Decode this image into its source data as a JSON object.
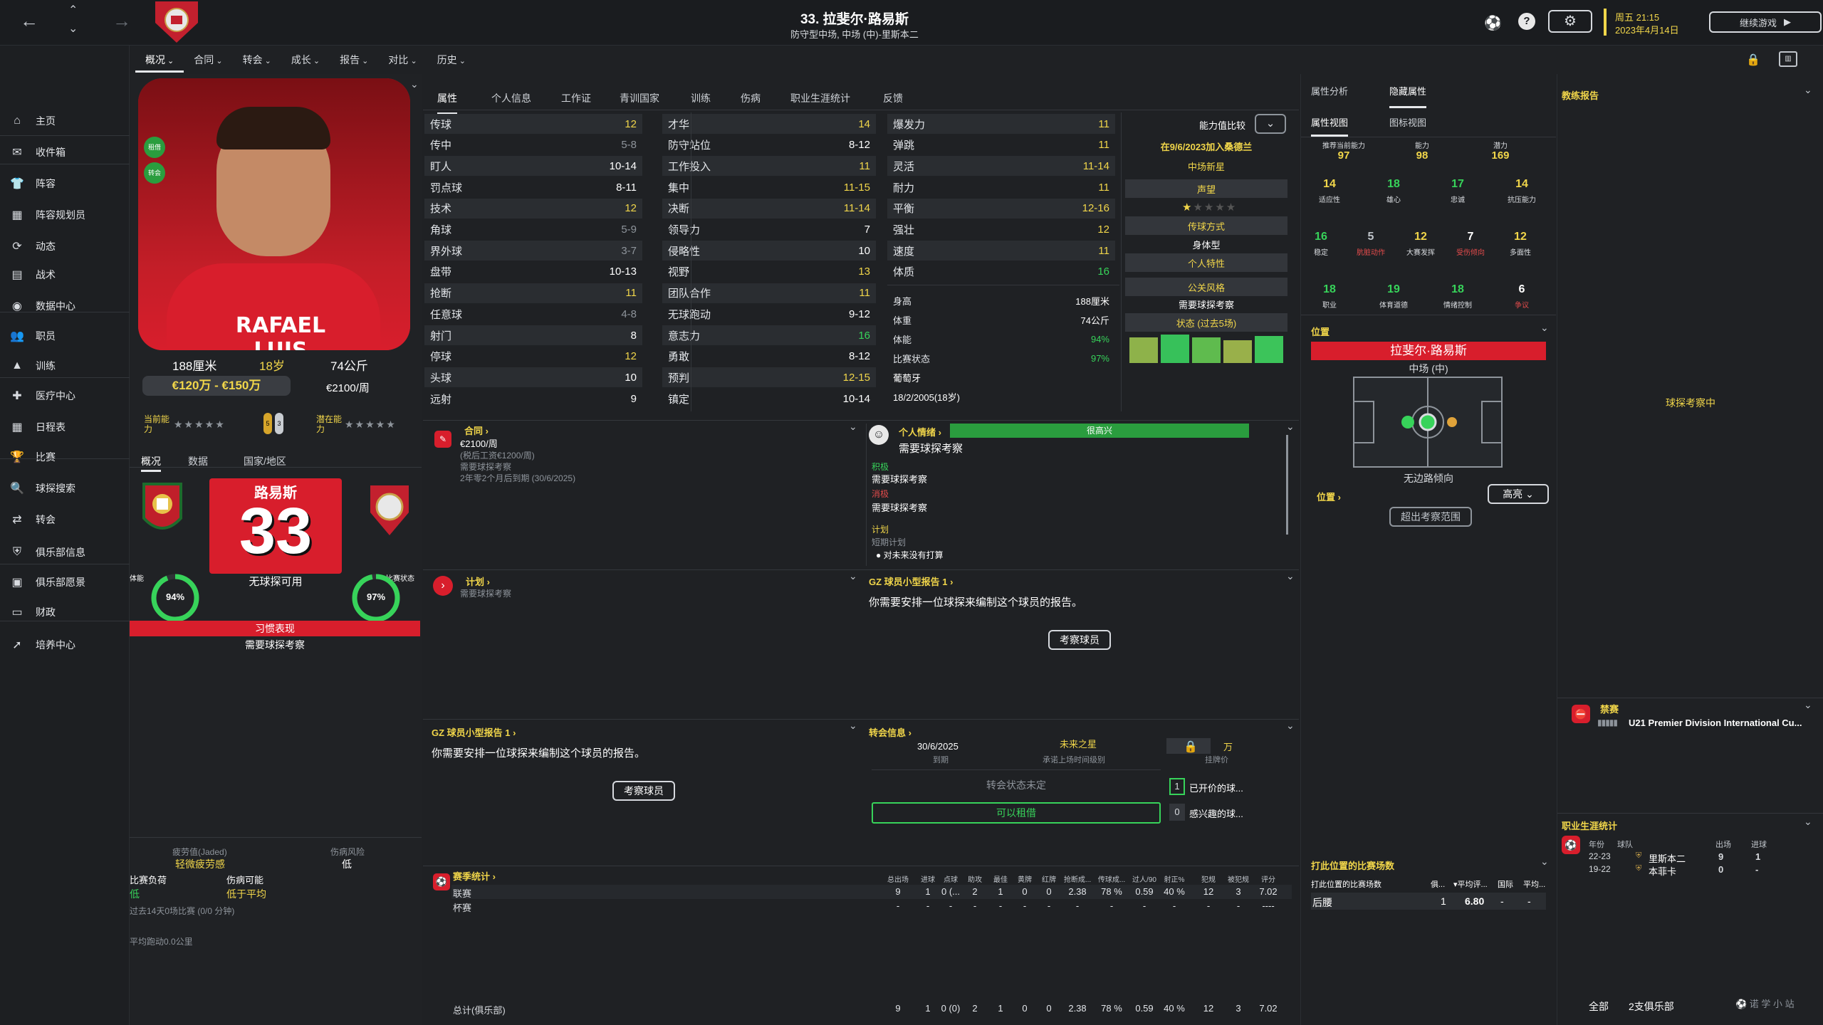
{
  "topbar": {
    "title": "33. 拉斐尔·路易斯",
    "subtitle": "防守型中场, 中场 (中)-里斯本二",
    "day": "周五 21:15",
    "date": "2023年4月14日",
    "continue": "继续游戏"
  },
  "sidebar": {
    "items": [
      {
        "label": "主页",
        "icon": "home-icon"
      },
      {
        "label": "收件箱",
        "icon": "inbox-icon"
      },
      {
        "label": "阵容",
        "icon": "shirt-icon"
      },
      {
        "label": "阵容规划员",
        "icon": "squad-planner-icon"
      },
      {
        "label": "动态",
        "icon": "dynamics-icon"
      },
      {
        "label": "战术",
        "icon": "tactics-icon"
      },
      {
        "label": "数据中心",
        "icon": "data-hub-icon"
      },
      {
        "label": "职员",
        "icon": "staff-icon"
      },
      {
        "label": "训练",
        "icon": "training-icon"
      },
      {
        "label": "医疗中心",
        "icon": "medical-icon"
      },
      {
        "label": "日程表",
        "icon": "calendar-icon"
      },
      {
        "label": "比赛",
        "icon": "trophy-icon"
      },
      {
        "label": "球探搜索",
        "icon": "scouting-icon"
      },
      {
        "label": "转会",
        "icon": "transfers-icon"
      },
      {
        "label": "俱乐部信息",
        "icon": "club-info-icon"
      },
      {
        "label": "俱乐部愿景",
        "icon": "club-vision-icon"
      },
      {
        "label": "财政",
        "icon": "finances-icon"
      },
      {
        "label": "培养中心",
        "icon": "development-icon"
      }
    ]
  },
  "subnav": [
    "概况",
    "合同",
    "转会",
    "成长",
    "报告",
    "对比",
    "历史"
  ],
  "player": {
    "name_on_shirt": "RAFAEL LUIS",
    "height": "188厘米",
    "age": "18岁",
    "weight": "74公斤",
    "value": "€120万 - €150万",
    "wage": "€2100/周",
    "current_ability": "当前能力",
    "potential": "潜在能力",
    "badge1": "租借",
    "badge2": "转会",
    "shirt_name": "路易斯",
    "shirt_number": "33",
    "availability": "无球探可用",
    "condition_label": "体能",
    "condition": "94%",
    "match_fit_label": "比赛状态",
    "match_fit": "97%",
    "form_label": "习惯表现",
    "form_value": "需要球探考察",
    "left_tabs": [
      "概况",
      "数据",
      "国家/地区"
    ],
    "fatigue_label": "疲劳值(Jaded)",
    "fatigue": "轻微疲劳感",
    "injury_risk_label": "伤病风险",
    "injury_risk": "低",
    "match_load_label": "比赛负荷",
    "match_load": "低",
    "injury_chance_label": "伤病可能",
    "injury_chance": "低于平均",
    "recent": "过去14天0场比赛 (0/0 分钟)",
    "avg_dist": "平均跑动0.0公里"
  },
  "attr_tabs": [
    "属性",
    "个人信息",
    "工作证",
    "青训国家",
    "训练",
    "伤病",
    "职业生涯统计",
    "反馈"
  ],
  "technical": [
    [
      "传球",
      "12",
      "y"
    ],
    [
      "传中",
      "5-8",
      "muted"
    ],
    [
      "盯人",
      "10-14",
      "w"
    ],
    [
      "罚点球",
      "8-11",
      "w"
    ],
    [
      "技术",
      "12",
      "y"
    ],
    [
      "角球",
      "5-9",
      "muted"
    ],
    [
      "界外球",
      "3-7",
      "muted"
    ],
    [
      "盘带",
      "10-13",
      "w"
    ],
    [
      "抢断",
      "11",
      "y"
    ],
    [
      "任意球",
      "4-8",
      "muted"
    ],
    [
      "射门",
      "8",
      "w"
    ],
    [
      "停球",
      "12",
      "y"
    ],
    [
      "头球",
      "10",
      "w"
    ],
    [
      "远射",
      "9",
      "w"
    ]
  ],
  "mental": [
    [
      "才华",
      "14",
      "y"
    ],
    [
      "防守站位",
      "8-12",
      "w"
    ],
    [
      "工作投入",
      "11",
      "y"
    ],
    [
      "集中",
      "11-15",
      "y"
    ],
    [
      "决断",
      "11-14",
      "y"
    ],
    [
      "领导力",
      "7",
      "w"
    ],
    [
      "侵略性",
      "10",
      "w"
    ],
    [
      "视野",
      "13",
      "y"
    ],
    [
      "团队合作",
      "11",
      "y"
    ],
    [
      "无球跑动",
      "9-12",
      "w"
    ],
    [
      "意志力",
      "16",
      "g"
    ],
    [
      "勇敢",
      "8-12",
      "w"
    ],
    [
      "预判",
      "12-15",
      "y"
    ],
    [
      "镇定",
      "10-14",
      "w"
    ]
  ],
  "physical": [
    [
      "爆发力",
      "11",
      "y"
    ],
    [
      "弹跳",
      "11",
      "y"
    ],
    [
      "灵活",
      "11-14",
      "y"
    ],
    [
      "耐力",
      "11",
      "y"
    ],
    [
      "平衡",
      "12-16",
      "y"
    ],
    [
      "强壮",
      "12",
      "y"
    ],
    [
      "速度",
      "11",
      "y"
    ],
    [
      "体质",
      "16",
      "g"
    ]
  ],
  "physinfo": [
    [
      "身高",
      "188厘米"
    ],
    [
      "体重",
      "74公斤"
    ],
    [
      "体能",
      "94%"
    ],
    [
      "比赛状态",
      "97%"
    ],
    [
      "国籍",
      "葡萄牙"
    ],
    [
      "出生",
      "18/2/2005(18岁)"
    ]
  ],
  "compare": {
    "label": "能力值比较",
    "joined": "在9/6/2023加入桑德兰",
    "role": "中场新星",
    "rep": "声望",
    "pass_style": "传球方式",
    "body": "身体型",
    "traits": "个人特性",
    "public_style": "公关风格",
    "public_val": "需要球探考察",
    "form": "状态 (过去5场)"
  },
  "hidden": {
    "tabs": [
      "属性分析",
      "隐藏属性"
    ],
    "subtabs": [
      "属性视图",
      "图标视图"
    ],
    "top": [
      [
        "推荐当前能力",
        "97"
      ],
      [
        "能力",
        "98"
      ],
      [
        "潜力",
        "169"
      ]
    ],
    "rows": [
      [
        [
          "14",
          "适应性"
        ],
        [
          "18",
          "雄心"
        ],
        [
          "17",
          "忠诚"
        ],
        [
          "14",
          "抗压能力"
        ]
      ],
      [
        [
          "16",
          "稳定"
        ],
        [
          "5",
          "肮脏动作"
        ],
        [
          "12",
          "大赛发挥"
        ],
        [
          "7",
          "受伤倾向"
        ],
        [
          "12",
          "多面性"
        ]
      ],
      [
        [
          "18",
          "职业"
        ],
        [
          "19",
          "体育道德"
        ],
        [
          "18",
          "情绪控制"
        ],
        [
          "6",
          "争议"
        ]
      ]
    ]
  },
  "position": {
    "title": "位置",
    "name": "拉斐尔·路易斯",
    "pos": "中场 (中)",
    "foot": "无边路倾向",
    "link": "位置",
    "highlight": "高亮",
    "outside": "超出考察范围"
  },
  "coach_report": {
    "title": "教练报告",
    "status": "球探考察中"
  },
  "contract": {
    "title": "合同",
    "wage": "€2100/周",
    "base": "(税后工资€1200/周)",
    "scout": "需要球探考察",
    "expiry": "2年零2个月后到期 (30/6/2025)"
  },
  "morale": {
    "title": "个人情绪",
    "bar": "很高兴",
    "scout": "需要球探考察",
    "pos_label": "积极",
    "pos_val": "需要球探考察",
    "neg_label": "消极",
    "neg_val": "需要球探考察",
    "plan_label": "计划",
    "plan_short": "短期计划",
    "plan_item": "对未来没有打算"
  },
  "plan": {
    "title": "计划",
    "sub": "需要球探考察"
  },
  "gz": {
    "title": "GZ 球员小型报告 1",
    "text": "你需要安排一位球探来编制这个球员的报告。",
    "button": "考察球员"
  },
  "transfer": {
    "title": "转会信息",
    "date": "30/6/2025",
    "date_label": "到期",
    "future": "未来之星",
    "future_label": "承诺上场时间级别",
    "price": "万",
    "price_label": "挂牌价",
    "status": "转会状态未定",
    "loan": "可以租借",
    "open_n": "1",
    "open": "已开价的球...",
    "interest_n": "0",
    "interest": "感兴趣的球..."
  },
  "season": {
    "title": "赛季统计",
    "headers": [
      "总出场",
      "进球",
      "点球",
      "助攻",
      "最佳",
      "黄牌",
      "红牌",
      "抢断成...",
      "传球成...",
      "过人/90",
      "射正%",
      "犯规",
      "被犯规",
      "评分"
    ],
    "rows": [
      {
        "name": "联赛",
        "vals": [
          "9",
          "1",
          "0 (...",
          "2",
          "1",
          "0",
          "0",
          "2.38",
          "78 %",
          "0.59",
          "40 %",
          "12",
          "3",
          "7.02"
        ]
      },
      {
        "name": "杯赛",
        "vals": [
          "-",
          "-",
          "-",
          "-",
          "-",
          "-",
          "-",
          "-",
          "-",
          "-",
          "-",
          "-",
          "-",
          "----"
        ]
      }
    ],
    "total": {
      "name": "总计(俱乐部)",
      "vals": [
        "9",
        "1",
        "0 (0)",
        "2",
        "1",
        "0",
        "0",
        "2.38",
        "78 %",
        "0.59",
        "40 %",
        "12",
        "3",
        "7.02"
      ]
    }
  },
  "bans": {
    "title": "禁赛",
    "comp": "U21 Premier Division International Cu..."
  },
  "by_position": {
    "title": "打此位置的比赛场数",
    "col1": "打此位置的比赛场数",
    "col2": "俱...",
    "col3": "▾平均评...",
    "col4": "国际",
    "col5": "平均...",
    "pos": "后腰",
    "n": "1",
    "rating": "6.80",
    "intl": "-",
    "avg": "-"
  },
  "career": {
    "title": "职业生涯统计",
    "headers": [
      "年份",
      "球队",
      "出场",
      "进球"
    ],
    "rows": [
      [
        "22-23",
        "里斯本二",
        "9",
        "1"
      ],
      [
        "19-22",
        "本菲卡",
        "0",
        "-"
      ]
    ],
    "all": "全部",
    "clubs": "2支俱乐部"
  },
  "colors": {
    "accent_red": "#d81e2c",
    "yellow": "#f1d64a",
    "green": "#37d35a"
  }
}
